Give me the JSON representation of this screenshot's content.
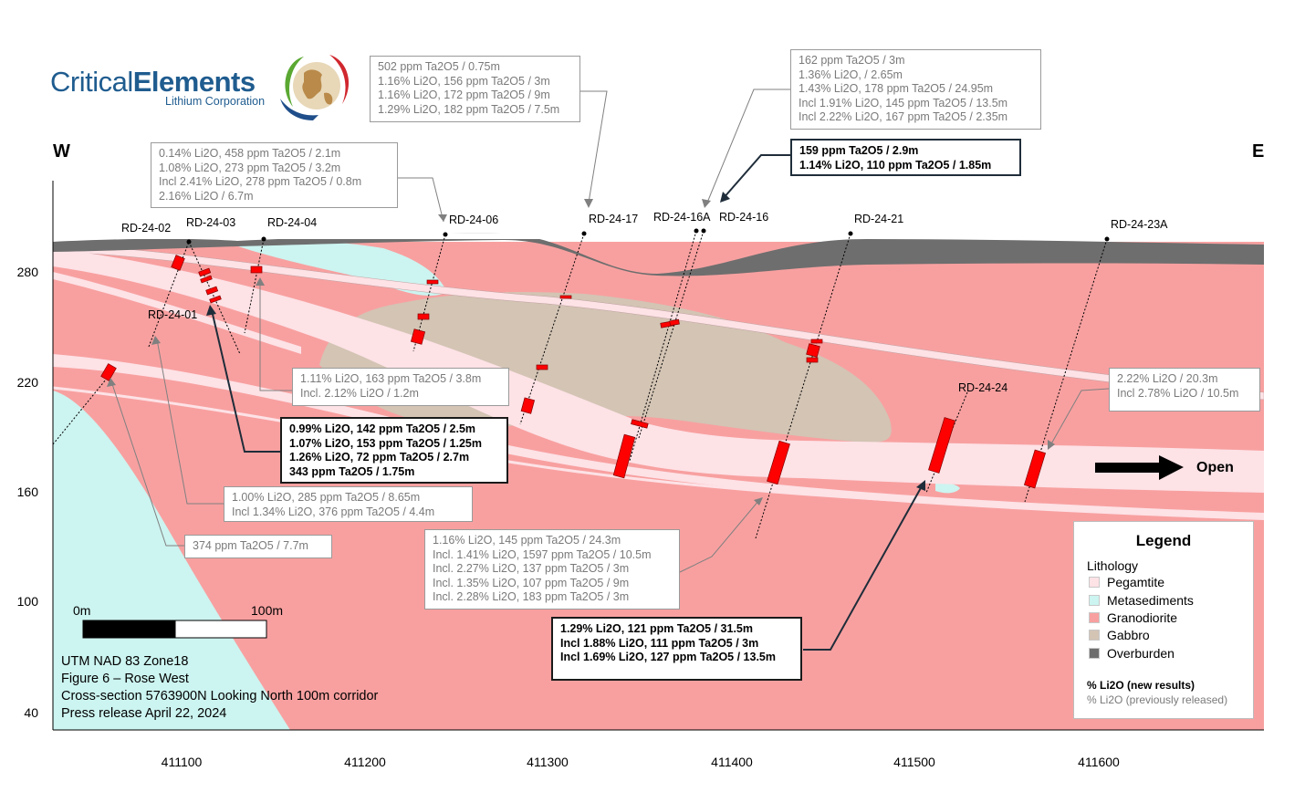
{
  "logo": {
    "name_light": "Critical",
    "name_bold": "Elements",
    "sub": "Lithium Corporation"
  },
  "compass": {
    "west": "W",
    "east": "E"
  },
  "drillholes": [
    {
      "id": "RD-24-01"
    },
    {
      "id": "RD-24-02"
    },
    {
      "id": "RD-24-03"
    },
    {
      "id": "RD-24-04"
    },
    {
      "id": "RD-24-06"
    },
    {
      "id": "RD-24-17"
    },
    {
      "id": "RD-24-16A"
    },
    {
      "id": "RD-24-16"
    },
    {
      "id": "RD-24-21"
    },
    {
      "id": "RD-24-24"
    },
    {
      "id": "RD-24-23A"
    }
  ],
  "callouts": {
    "top_left": [
      "0.14% Li2O, 458 ppm Ta2O5 / 2.1m",
      "1.08% Li2O, 273 ppm Ta2O5 / 3.2m",
      "Incl 2.41% Li2O, 278 ppm Ta2O5 / 0.8m",
      "2.16% Li2O / 6.7m"
    ],
    "top_mid": [
      "502 ppm Ta2O5 / 0.75m",
      "1.16% Li2O, 156 ppm Ta2O5 / 3m",
      "1.16% Li2O, 172 ppm Ta2O5 / 9m",
      "1.29% Li2O, 182 ppm Ta2O5 / 7.5m"
    ],
    "top_right": [
      "162 ppm Ta2O5 / 3m",
      "1.36% Li2O, / 2.65m",
      "1.43% Li2O, 178 ppm Ta2O5 / 24.95m",
      "Incl 1.91% Li2O, 145 ppm Ta2O5 / 13.5m",
      "Incl 2.22% Li2O, 167 ppm Ta2O5 / 2.35m"
    ],
    "new_16": [
      "159 ppm Ta2O5 / 2.9m",
      "1.14% Li2O, 110 ppm Ta2O5 / 1.85m"
    ],
    "mid_04": [
      "1.11% Li2O, 163 ppm Ta2O5 / 3.8m",
      "Incl. 2.12% Li2O / 1.2m"
    ],
    "new_03": [
      "0.99% Li2O, 142 ppm Ta2O5 / 2.5m",
      "1.07% Li2O, 153 ppm Ta2O5 / 1.25m",
      "1.26% Li2O, 72 ppm Ta2O5 / 2.7m",
      "343 ppm Ta2O5 / 1.75m"
    ],
    "low_02": [
      "1.00% Li2O, 285 ppm Ta2O5 / 8.65m",
      "Incl 1.34% Li2O, 376 ppm Ta2O5 / 4.4m"
    ],
    "low_01": [
      "374 ppm Ta2O5 / 7.7m"
    ],
    "low_21": [
      "1.16% Li2O, 145 ppm Ta2O5 / 24.3m",
      "Incl. 1.41% Li2O, 1597 ppm Ta2O5 / 10.5m",
      "Incl. 2.27% Li2O, 137 ppm Ta2O5 / 3m",
      "Incl. 1.35% Li2O, 107 ppm Ta2O5 / 9m",
      "Incl. 2.28% Li2O, 183 ppm Ta2O5 / 3m"
    ],
    "new_24": [
      "1.29% Li2O, 121 ppm Ta2O5 / 31.5m",
      "Incl 1.88% Li2O, 111 ppm Ta2O5 / 3m",
      "Incl 1.69% Li2O, 127 ppm Ta2O5 / 13.5m"
    ],
    "right_23A": [
      "2.22% Li2O / 20.3m",
      "Incl 2.78% Li2O / 10.5m"
    ]
  },
  "axes": {
    "y_ticks": [
      "280",
      "220",
      "160",
      "100",
      "40"
    ],
    "x_ticks": [
      "411100",
      "411200",
      "411300",
      "411400",
      "411500",
      "411600"
    ]
  },
  "scale_bar": {
    "start": "0m",
    "end": "100m"
  },
  "open_label": "Open",
  "legend": {
    "title": "Legend",
    "subtitle": "Lithology",
    "items": [
      {
        "label": "Pegamtite",
        "color": "#fde2e6"
      },
      {
        "label": "Metasediments",
        "color": "#ccf4f0"
      },
      {
        "label": "Granodiorite",
        "color": "#f8a0a0"
      },
      {
        "label": "Gabbro",
        "color": "#d3c4b4"
      },
      {
        "label": "Overburden",
        "color": "#6e6e6e"
      }
    ],
    "note_new": "% Li2O (new results)",
    "note_old": "% Li2O (previously released)"
  },
  "caption": [
    "UTM NAD 83 Zone18",
    "Figure 6 – Rose West",
    "Cross-section 5763900N Looking North 100m corridor",
    "Press release April 22, 2024"
  ],
  "colors": {
    "granodiorite": "#f8a0a0",
    "pegmatite": "#fde2e6",
    "metasediments": "#ccf4f0",
    "gabbro": "#d3c4b4",
    "overburden": "#6e6e6e",
    "intercept": "#ff0000",
    "brand_blue": "#1f5c8f"
  }
}
